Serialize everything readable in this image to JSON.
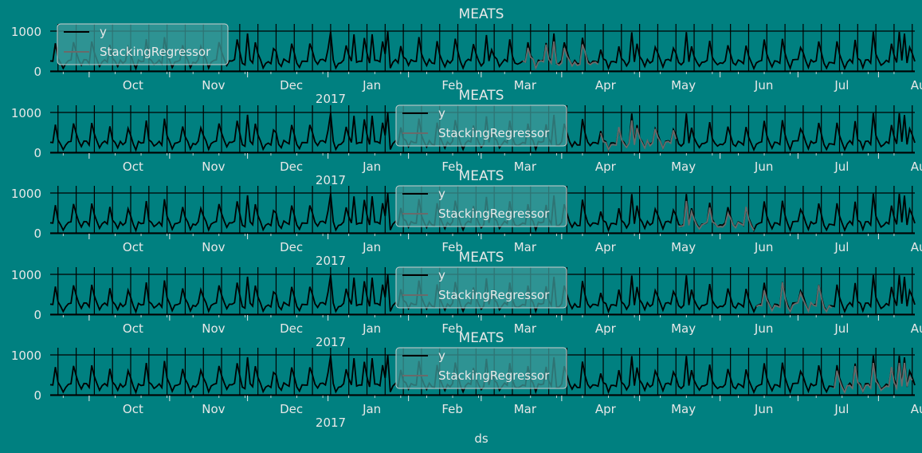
{
  "figure": {
    "xlabel": "ds"
  },
  "colors": {
    "background": "#008080",
    "actual": "#000000",
    "forecast": "#6a6a6a",
    "text": "#e8e8e8"
  },
  "chart_data": [
    {
      "type": "line",
      "title": "MEATS",
      "ylim": [
        0,
        1100
      ],
      "yticks": [
        0,
        1000
      ],
      "x_range": [
        "2016-09-16",
        "2017-08-15"
      ],
      "month_ticks": [
        "Oct",
        "Nov",
        "Dec",
        "Jan",
        "Feb",
        "Mar",
        "Apr",
        "May",
        "Jun",
        "Jul",
        "Aug"
      ],
      "year_label": "2017",
      "legend_position": "upper-left",
      "grid": true,
      "series": [
        {
          "name": "y"
        },
        {
          "name": "StackingRegressor"
        }
      ],
      "forecast_window": [
        "2017-03-17",
        "2017-04-15"
      ]
    },
    {
      "type": "line",
      "title": "MEATS",
      "ylim": [
        0,
        1100
      ],
      "yticks": [
        0,
        1000
      ],
      "x_range": [
        "2016-09-16",
        "2017-08-15"
      ],
      "month_ticks": [
        "Oct",
        "Nov",
        "Dec",
        "Jan",
        "Feb",
        "Mar",
        "Apr",
        "May",
        "Jun",
        "Jul",
        "Aug"
      ],
      "year_label": "2017",
      "legend_position": "upper-center",
      "grid": true,
      "series": [
        {
          "name": "y"
        },
        {
          "name": "StackingRegressor"
        }
      ],
      "forecast_window": [
        "2017-04-16",
        "2017-05-15"
      ]
    },
    {
      "type": "line",
      "title": "MEATS",
      "ylim": [
        0,
        1100
      ],
      "yticks": [
        0,
        1000
      ],
      "x_range": [
        "2016-09-16",
        "2017-08-15"
      ],
      "month_ticks": [
        "Oct",
        "Nov",
        "Dec",
        "Jan",
        "Feb",
        "Mar",
        "Apr",
        "May",
        "Jun",
        "Jul",
        "Aug"
      ],
      "year_label": "2017",
      "legend_position": "upper-center",
      "grid": true,
      "series": [
        {
          "name": "y"
        },
        {
          "name": "StackingRegressor"
        }
      ],
      "forecast_window": [
        "2017-05-16",
        "2017-06-14"
      ]
    },
    {
      "type": "line",
      "title": "MEATS",
      "ylim": [
        0,
        1100
      ],
      "yticks": [
        0,
        1000
      ],
      "x_range": [
        "2016-09-16",
        "2017-08-15"
      ],
      "month_ticks": [
        "Oct",
        "Nov",
        "Dec",
        "Jan",
        "Feb",
        "Mar",
        "Apr",
        "May",
        "Jun",
        "Jul",
        "Aug"
      ],
      "year_label": "2017",
      "legend_position": "upper-center",
      "grid": true,
      "series": [
        {
          "name": "y"
        },
        {
          "name": "StackingRegressor"
        }
      ],
      "forecast_window": [
        "2017-06-15",
        "2017-07-14"
      ]
    },
    {
      "type": "line",
      "title": "MEATS",
      "ylim": [
        0,
        1100
      ],
      "yticks": [
        0,
        1000
      ],
      "x_range": [
        "2016-09-16",
        "2017-08-15"
      ],
      "month_ticks": [
        "Oct",
        "Nov",
        "Dec",
        "Jan",
        "Feb",
        "Mar",
        "Apr",
        "May",
        "Jun",
        "Jul",
        "Aug"
      ],
      "year_label": "2017",
      "legend_position": "upper-center",
      "grid": true,
      "series": [
        {
          "name": "y"
        },
        {
          "name": "StackingRegressor"
        }
      ],
      "forecast_window": [
        "2017-07-15",
        "2017-08-14"
      ]
    }
  ]
}
